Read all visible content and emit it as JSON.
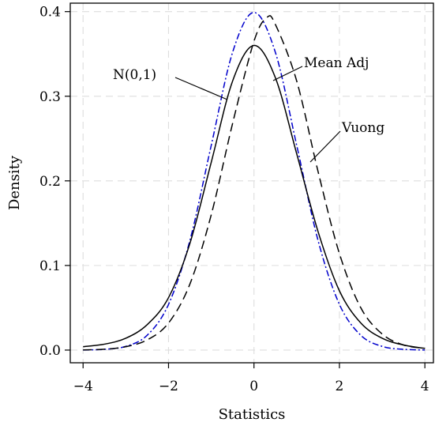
{
  "chart_data": {
    "type": "line",
    "title": "",
    "xlabel": "Statistics",
    "ylabel": "Density",
    "xlim": [
      -4.3,
      4.2
    ],
    "ylim": [
      -0.015,
      0.41
    ],
    "xticks": [
      -4,
      -2,
      0,
      2,
      4
    ],
    "xtick_labels": [
      "−4",
      "−2",
      "0",
      "2",
      "4"
    ],
    "yticks": [
      0.0,
      0.1,
      0.2,
      0.3,
      0.4
    ],
    "ytick_labels": [
      "0.0",
      "0.1",
      "0.2",
      "0.3",
      "0.4"
    ],
    "grid": true,
    "legend": "none",
    "series": [
      {
        "name": "N(0,1)",
        "color": "#0000cc",
        "dash": "dash-dot",
        "x": [
          -4.0,
          -3.5,
          -3.0,
          -2.5,
          -2.0,
          -1.5,
          -1.0,
          -0.5,
          0.0,
          0.5,
          1.0,
          1.5,
          2.0,
          2.5,
          3.0,
          3.5,
          4.0
        ],
        "y": [
          0.0001,
          0.0009,
          0.0044,
          0.0175,
          0.054,
          0.1295,
          0.242,
          0.352,
          0.399,
          0.352,
          0.242,
          0.1295,
          0.054,
          0.0175,
          0.0044,
          0.0009,
          0.0001
        ]
      },
      {
        "name": "Mean Adj",
        "color": "#000000",
        "dash": "solid",
        "x": [
          -4.0,
          -3.5,
          -3.0,
          -2.5,
          -2.0,
          -1.5,
          -1.0,
          -0.5,
          0.0,
          0.5,
          1.0,
          1.5,
          2.0,
          2.5,
          3.0,
          3.5,
          4.0
        ],
        "y": [
          0.004,
          0.007,
          0.014,
          0.03,
          0.062,
          0.126,
          0.222,
          0.318,
          0.36,
          0.322,
          0.232,
          0.14,
          0.07,
          0.032,
          0.014,
          0.006,
          0.002
        ]
      },
      {
        "name": "Vuong",
        "color": "#000000",
        "dash": "dashed",
        "x": [
          -4.0,
          -3.5,
          -3.0,
          -2.5,
          -2.0,
          -1.5,
          -1.0,
          -0.5,
          0.0,
          0.3,
          0.5,
          1.0,
          1.5,
          2.0,
          2.5,
          3.0,
          3.5,
          4.0
        ],
        "y": [
          0.0002,
          0.001,
          0.004,
          0.012,
          0.032,
          0.078,
          0.16,
          0.268,
          0.365,
          0.393,
          0.385,
          0.318,
          0.211,
          0.114,
          0.05,
          0.019,
          0.006,
          0.002
        ]
      }
    ],
    "annotations": [
      {
        "text": "N(0,1)",
        "target": "N(0,1)"
      },
      {
        "text": "Mean Adj",
        "target": "Mean Adj"
      },
      {
        "text": "Vuong",
        "target": "Vuong"
      }
    ]
  }
}
